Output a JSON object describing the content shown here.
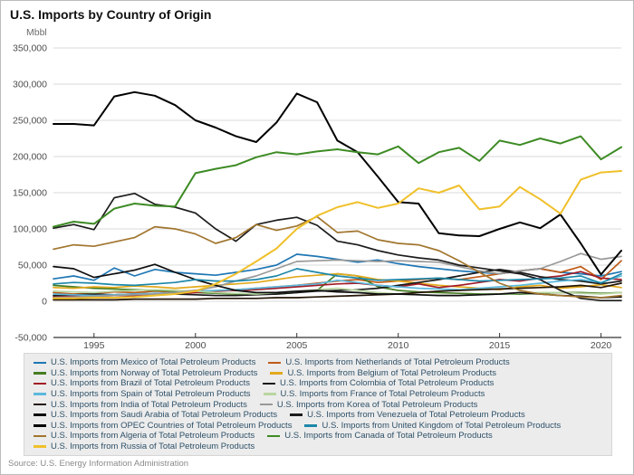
{
  "header": {
    "title": "U.S. Imports by Country of Origin",
    "unit_label": "Mbbl"
  },
  "source": "Source: U.S. Energy Information Administration",
  "colors": {
    "gridline": "#d9d9d9",
    "axis": "#333333",
    "tick_label": "#4d4d4d",
    "legend_bg": "#ececec",
    "legend_text": "#2d5068"
  },
  "chart_data": {
    "type": "line",
    "title": "U.S. Imports by Country of Origin",
    "ylabel": "Mbbl",
    "xlabel": "",
    "grid": true,
    "legend_position": "bottom",
    "ylim": [
      -50000,
      350000
    ],
    "x": [
      1993,
      1994,
      1995,
      1996,
      1997,
      1998,
      1999,
      2000,
      2001,
      2002,
      2003,
      2004,
      2005,
      2006,
      2007,
      2008,
      2009,
      2010,
      2011,
      2012,
      2013,
      2014,
      2015,
      2016,
      2017,
      2018,
      2019,
      2020,
      2021
    ],
    "x_ticks": [
      {
        "value": 1995,
        "label": "1995"
      },
      {
        "value": 2000,
        "label": "2000"
      },
      {
        "value": 2005,
        "label": "2005"
      },
      {
        "value": 2010,
        "label": "2010"
      },
      {
        "value": 2015,
        "label": "2015"
      },
      {
        "value": 2020,
        "label": "2020"
      }
    ],
    "y_ticks": [
      {
        "value": 350000,
        "label": "350,000"
      },
      {
        "value": 300000,
        "label": "300,000"
      },
      {
        "value": 250000,
        "label": "250,000"
      },
      {
        "value": 200000,
        "label": "200,000"
      },
      {
        "value": 150000,
        "label": "150,000"
      },
      {
        "value": 100000,
        "label": "100,000"
      },
      {
        "value": 50000,
        "label": "50,000"
      },
      {
        "value": 0,
        "label": "0"
      },
      {
        "value": -50000,
        "label": "-50,000"
      }
    ],
    "series": [
      {
        "id": "mexico",
        "name": "U.S. Imports from Mexico of Total Petroleum Products",
        "color": "#1f77b4",
        "values": [
          31000,
          35000,
          29000,
          46000,
          35000,
          44000,
          40000,
          38000,
          36000,
          40000,
          44000,
          50000,
          65000,
          62000,
          58000,
          54000,
          57000,
          52000,
          48000,
          45000,
          42000,
          40000,
          38000,
          42000,
          45000,
          40000,
          38000,
          35000,
          41000
        ]
      },
      {
        "id": "netherlands",
        "name": "U.S. Imports from Netherlands of Total Petroleum Products",
        "color": "#bf5b17",
        "values": [
          12000,
          10000,
          11000,
          13000,
          12000,
          14000,
          13000,
          15000,
          14000,
          16000,
          18000,
          20000,
          22000,
          25000,
          28000,
          30000,
          26000,
          28000,
          30000,
          32000,
          30000,
          34000,
          38000,
          42000,
          45000,
          40000,
          48000,
          30000,
          56000
        ]
      },
      {
        "id": "norway",
        "name": "U.S. Imports from Norway of Total Petroleum Products",
        "color": "#467d23",
        "values": [
          22000,
          20000,
          18000,
          17000,
          16000,
          15000,
          14000,
          12000,
          11000,
          10000,
          10000,
          10000,
          12000,
          15000,
          38000,
          35000,
          20000,
          15000,
          13000,
          12000,
          11000,
          10000,
          10000,
          10000,
          11000,
          12000,
          12000,
          11000,
          12000
        ]
      },
      {
        "id": "belgium",
        "name": "U.S. Imports from Belgium of Total Petroleum Products",
        "color": "#e2a91c",
        "values": [
          19000,
          18000,
          20000,
          19000,
          21000,
          20000,
          18000,
          20000,
          22000,
          24000,
          26000,
          30000,
          34000,
          36000,
          38000,
          35000,
          30000,
          28000,
          25000,
          22000,
          20000,
          18000,
          16000,
          20000,
          22000,
          18000,
          20000,
          23000,
          19000
        ]
      },
      {
        "id": "brazil",
        "name": "U.S. Imports from Brazil of Total Petroleum Products",
        "color": "#a21c28",
        "values": [
          6000,
          7000,
          7000,
          8000,
          8000,
          9000,
          10000,
          12000,
          14000,
          15000,
          16000,
          18000,
          20000,
          22000,
          24000,
          25000,
          22000,
          20000,
          24000,
          19000,
          22000,
          26000,
          30000,
          28000,
          32000,
          35000,
          41000,
          32000,
          30000
        ]
      },
      {
        "id": "colombia",
        "name": "U.S. Imports from Colombia of Total Petroleum Products",
        "color": "#1a1a1a",
        "values": [
          8000,
          9000,
          10000,
          9000,
          10000,
          11000,
          10000,
          9000,
          8000,
          8000,
          9000,
          10000,
          12000,
          14000,
          15000,
          16000,
          18000,
          22000,
          26000,
          30000,
          35000,
          40000,
          44000,
          40000,
          34000,
          30000,
          28000,
          24000,
          28000
        ]
      },
      {
        "id": "spain",
        "name": "U.S. Imports from Spain of Total Petroleum Products",
        "color": "#5cb8dd",
        "values": [
          10000,
          9000,
          8000,
          9000,
          10000,
          11000,
          12000,
          14000,
          15000,
          16000,
          18000,
          20000,
          22000,
          24000,
          29000,
          26000,
          22000,
          20000,
          18000,
          17000,
          16000,
          18000,
          20000,
          22000,
          25000,
          28000,
          30000,
          26000,
          35000
        ]
      },
      {
        "id": "france",
        "name": "U.S. Imports from France of Total Petroleum Products",
        "color": "#b8d6a0",
        "values": [
          14000,
          13000,
          12000,
          14000,
          15000,
          16000,
          15000,
          14000,
          12000,
          11000,
          10000,
          12000,
          14000,
          16000,
          18000,
          15000,
          12000,
          10000,
          9000,
          8000,
          8000,
          9000,
          10000,
          11000,
          12000,
          12000,
          11000,
          10000,
          12000
        ]
      },
      {
        "id": "india",
        "name": "U.S. Imports from India of Total Petroleum Products",
        "color": "#241505",
        "values": [
          2000,
          2000,
          2000,
          2000,
          3000,
          3000,
          3000,
          3000,
          4000,
          4000,
          4000,
          5000,
          5000,
          6000,
          7000,
          8000,
          9000,
          10000,
          12000,
          14000,
          15000,
          16000,
          17000,
          18000,
          19000,
          20000,
          22000,
          19000,
          25000
        ]
      },
      {
        "id": "korea",
        "name": "U.S. Imports from Korea of Total Petroleum Products",
        "color": "#999999",
        "values": [
          5000,
          6000,
          7000,
          8000,
          9000,
          10000,
          12000,
          15000,
          20000,
          28000,
          35000,
          45000,
          55000,
          56000,
          57000,
          56000,
          55000,
          56000,
          55000,
          54000,
          48000,
          42000,
          38000,
          42000,
          45000,
          55000,
          66000,
          58000,
          62000
        ]
      },
      {
        "id": "saudi-arabia",
        "name": "U.S. Imports from Saudi Arabia of Total Petroleum Products",
        "color": "#0d0d0d",
        "values": [
          48000,
          45000,
          33000,
          38000,
          43000,
          51000,
          40000,
          30000,
          22000,
          15000,
          12000,
          12000,
          14000,
          15000,
          13000,
          12000,
          10000,
          10000,
          9000,
          8000,
          8000,
          9000,
          10000,
          12000,
          10000,
          8000,
          7000,
          5000,
          6000
        ]
      },
      {
        "id": "venezuela",
        "name": "U.S. Imports from Venezuela of Total Petroleum Products",
        "color": "#1c1c1c",
        "values": [
          101000,
          106000,
          99000,
          143000,
          149000,
          134000,
          130000,
          122000,
          100000,
          83000,
          106000,
          112000,
          116000,
          105000,
          83000,
          78000,
          70000,
          64000,
          60000,
          57000,
          50000,
          46000,
          42000,
          38000,
          30000,
          15000,
          4000,
          1000,
          1000
        ]
      },
      {
        "id": "opec-countries",
        "name": "U.S. Imports from OPEC Countries of Total Petroleum Products",
        "color": "#000000",
        "width": 2,
        "values": [
          245000,
          245000,
          243000,
          283000,
          289000,
          284000,
          271000,
          250000,
          240000,
          228000,
          220000,
          247000,
          287000,
          275000,
          222000,
          206000,
          172000,
          137000,
          135000,
          94000,
          91000,
          90000,
          100000,
          109000,
          101000,
          120000,
          80000,
          37000,
          70000
        ]
      },
      {
        "id": "united-kingdom",
        "name": "U.S. Imports from United Kingdom of Total Petroleum Products",
        "color": "#1c87a8",
        "values": [
          24000,
          26000,
          25000,
          23000,
          22000,
          24000,
          26000,
          30000,
          28000,
          28000,
          30000,
          35000,
          45000,
          40000,
          35000,
          32000,
          29000,
          30000,
          31000,
          32000,
          30000,
          28000,
          29000,
          30000,
          31000,
          32000,
          35000,
          25000,
          38000
        ]
      },
      {
        "id": "algeria",
        "name": "U.S. Imports from Algeria of Total Petroleum Products",
        "color": "#a1752e",
        "values": [
          72000,
          78000,
          76000,
          82000,
          88000,
          103000,
          100000,
          93000,
          80000,
          88000,
          106000,
          98000,
          104000,
          117000,
          95000,
          97000,
          85000,
          80000,
          78000,
          70000,
          56000,
          40000,
          25000,
          15000,
          10000,
          8000,
          6000,
          5000,
          8000
        ]
      },
      {
        "id": "canada",
        "name": "U.S. Imports from Canada of Total Petroleum Products",
        "color": "#3d8b24",
        "width": 2,
        "values": [
          103000,
          110000,
          107000,
          128000,
          135000,
          132000,
          131000,
          177000,
          183000,
          188000,
          199000,
          206000,
          203000,
          207000,
          210000,
          206000,
          203000,
          214000,
          191000,
          206000,
          212000,
          194000,
          222000,
          216000,
          225000,
          218000,
          228000,
          196000,
          213000
        ]
      },
      {
        "id": "russia",
        "name": "U.S. Imports from Russia of Total Petroleum Products",
        "color": "#f0c02a",
        "width": 2,
        "values": [
          4000,
          4000,
          5000,
          5000,
          6000,
          8000,
          10000,
          14000,
          24000,
          38000,
          55000,
          73000,
          100000,
          118000,
          130000,
          137000,
          129000,
          135000,
          156000,
          150000,
          160000,
          127000,
          131000,
          158000,
          141000,
          121000,
          168000,
          178000,
          180000
        ]
      }
    ]
  }
}
